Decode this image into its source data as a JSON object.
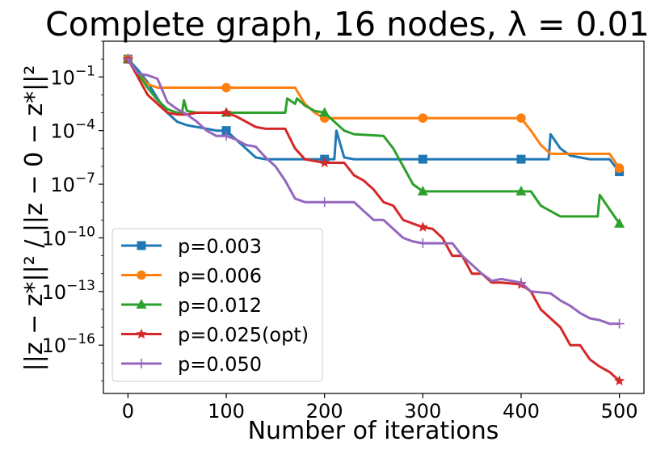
{
  "chart_data": {
    "type": "line",
    "title": "Complete graph, 16 nodes, λ = 0.01",
    "xlabel": "Number of iterations",
    "ylabel": "||z − z*||² / ||z − 0 − z*||²",
    "yscale": "log",
    "xlim": [
      -25,
      525
    ],
    "ylim_log10": [
      -18.7,
      1.0
    ],
    "x_ticks": [
      0,
      100,
      200,
      300,
      400,
      500
    ],
    "x_tick_labels": [
      "0",
      "100",
      "200",
      "300",
      "400",
      "500"
    ],
    "y_ticks_log10": [
      -16,
      -13,
      -10,
      -7,
      -4,
      -1
    ],
    "y_tick_labels": [
      {
        "base": "10",
        "exp": "−16"
      },
      {
        "base": "10",
        "exp": "−13"
      },
      {
        "base": "10",
        "exp": "−10"
      },
      {
        "base": "10",
        "exp": "−7"
      },
      {
        "base": "10",
        "exp": "−4"
      },
      {
        "base": "10",
        "exp": "−1"
      }
    ],
    "legend_position": "lower-left",
    "series": [
      {
        "name": "p=0.003",
        "color": "#1f77b4",
        "marker": "square",
        "x": [
          0,
          10,
          20,
          30,
          40,
          50,
          60,
          70,
          80,
          90,
          100,
          110,
          120,
          130,
          140,
          150,
          200,
          210,
          212,
          220,
          230,
          300,
          400,
          428,
          430,
          440,
          450,
          470,
          490,
          500
        ],
        "log10_y": [
          0,
          -0.6,
          -1.3,
          -2.2,
          -3.0,
          -3.5,
          -3.7,
          -3.8,
          -3.9,
          -4.0,
          -4.0,
          -4.5,
          -5.0,
          -5.5,
          -5.6,
          -5.6,
          -5.6,
          -5.6,
          -4.0,
          -5.5,
          -5.6,
          -5.6,
          -5.6,
          -5.6,
          -4.2,
          -5.0,
          -5.4,
          -5.6,
          -5.6,
          -6.3
        ]
      },
      {
        "name": "p=0.006",
        "color": "#ff7f0e",
        "marker": "circle",
        "x": [
          0,
          10,
          20,
          30,
          40,
          60,
          100,
          150,
          170,
          180,
          190,
          200,
          300,
          400,
          410,
          420,
          430,
          490,
          500
        ],
        "log10_y": [
          0,
          -0.8,
          -1.4,
          -1.6,
          -1.6,
          -1.6,
          -1.6,
          -1.6,
          -1.6,
          -2.5,
          -3.0,
          -3.3,
          -3.3,
          -3.3,
          -4.0,
          -4.8,
          -5.3,
          -5.3,
          -6.1
        ]
      },
      {
        "name": "p=0.012",
        "color": "#2ca02c",
        "marker": "triangle",
        "x": [
          0,
          10,
          20,
          30,
          40,
          50,
          55,
          57,
          60,
          70,
          100,
          150,
          160,
          162,
          170,
          172,
          180,
          190,
          200,
          210,
          220,
          230,
          260,
          270,
          280,
          290,
          300,
          400,
          410,
          420,
          440,
          478,
          480,
          490,
          500
        ],
        "log10_y": [
          0,
          -0.8,
          -1.6,
          -2.3,
          -2.8,
          -3.0,
          -3.0,
          -2.3,
          -2.9,
          -3.0,
          -3.0,
          -3.0,
          -3.0,
          -2.2,
          -2.5,
          -2.2,
          -2.6,
          -2.9,
          -3.0,
          -3.5,
          -4.0,
          -4.2,
          -4.3,
          -5.0,
          -6.0,
          -7.0,
          -7.4,
          -7.4,
          -7.4,
          -8.2,
          -8.8,
          -8.8,
          -7.6,
          -8.4,
          -9.2
        ]
      },
      {
        "name": "p=0.025(opt)",
        "color": "#d62728",
        "marker": "star",
        "x": [
          0,
          10,
          20,
          30,
          40,
          50,
          60,
          70,
          80,
          90,
          100,
          110,
          120,
          130,
          140,
          160,
          170,
          180,
          190,
          200,
          220,
          230,
          240,
          250,
          260,
          270,
          280,
          300,
          310,
          320,
          330,
          340,
          350,
          360,
          370,
          380,
          400,
          410,
          420,
          430,
          440,
          450,
          460,
          470,
          480,
          490,
          500
        ],
        "log10_y": [
          0,
          -1.0,
          -2.0,
          -2.5,
          -3.0,
          -3.1,
          -3.1,
          -3.0,
          -3.0,
          -3.0,
          -3.0,
          -3.2,
          -3.5,
          -3.8,
          -3.9,
          -3.9,
          -5.0,
          -5.6,
          -5.7,
          -5.8,
          -5.8,
          -6.5,
          -6.8,
          -7.3,
          -8.0,
          -8.2,
          -9.0,
          -9.4,
          -9.5,
          -10.0,
          -11.0,
          -11.0,
          -12.0,
          -12.0,
          -12.5,
          -12.5,
          -12.6,
          -13.0,
          -14.0,
          -14.5,
          -15.0,
          -16.0,
          -16.0,
          -16.8,
          -17.2,
          -17.5,
          -18.0
        ]
      },
      {
        "name": "p=0.050",
        "color": "#9467bd",
        "marker": "plus",
        "x": [
          0,
          10,
          20,
          30,
          40,
          50,
          60,
          70,
          80,
          90,
          100,
          110,
          120,
          130,
          140,
          150,
          160,
          170,
          180,
          200,
          230,
          240,
          250,
          260,
          270,
          280,
          290,
          300,
          330,
          340,
          350,
          360,
          370,
          380,
          390,
          400,
          410,
          430,
          440,
          450,
          460,
          470,
          480,
          490,
          500
        ],
        "log10_y": [
          0,
          -0.8,
          -0.9,
          -1.1,
          -2.4,
          -2.8,
          -3.1,
          -3.5,
          -4.0,
          -4.3,
          -4.3,
          -4.5,
          -4.8,
          -4.9,
          -5.5,
          -6.0,
          -6.8,
          -7.8,
          -8.0,
          -8.0,
          -8.0,
          -8.5,
          -9.0,
          -9.0,
          -9.5,
          -10.0,
          -10.2,
          -10.3,
          -10.3,
          -11.0,
          -11.5,
          -12.0,
          -12.4,
          -12.3,
          -12.4,
          -12.5,
          -13.0,
          -13.1,
          -13.5,
          -13.8,
          -14.2,
          -14.5,
          -14.6,
          -14.8,
          -14.8
        ]
      }
    ]
  }
}
